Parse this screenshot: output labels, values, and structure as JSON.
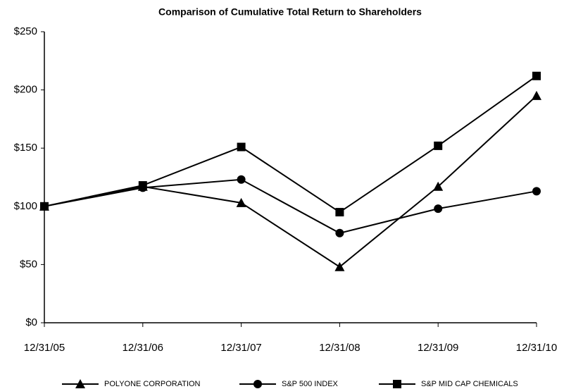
{
  "chart_data": {
    "type": "line",
    "title": "Comparison of Cumulative Total Return to Shareholders",
    "categories": [
      "12/31/05",
      "12/31/06",
      "12/31/07",
      "12/31/08",
      "12/31/09",
      "12/31/10"
    ],
    "series": [
      {
        "name": "POLYONE CORPORATION",
        "color": "#000000",
        "marker": "triangle",
        "values": [
          100,
          117,
          103,
          48,
          117,
          195
        ]
      },
      {
        "name": "S&P 500 INDEX",
        "color": "#000000",
        "marker": "circle",
        "values": [
          100,
          116,
          123,
          77,
          98,
          113
        ]
      },
      {
        "name": "S&P MID CAP CHEMICALS",
        "color": "#000000",
        "marker": "square",
        "values": [
          100,
          118,
          151,
          95,
          152,
          212
        ]
      }
    ],
    "ylim": [
      0,
      250
    ],
    "yticks": [
      {
        "value": 0,
        "label": "$0"
      },
      {
        "value": 50,
        "label": "$50"
      },
      {
        "value": 100,
        "label": "$100"
      },
      {
        "value": 150,
        "label": "$150"
      },
      {
        "value": 200,
        "label": "$200"
      },
      {
        "value": 250,
        "label": "$250"
      }
    ],
    "grid": false,
    "legend": "bottom"
  }
}
